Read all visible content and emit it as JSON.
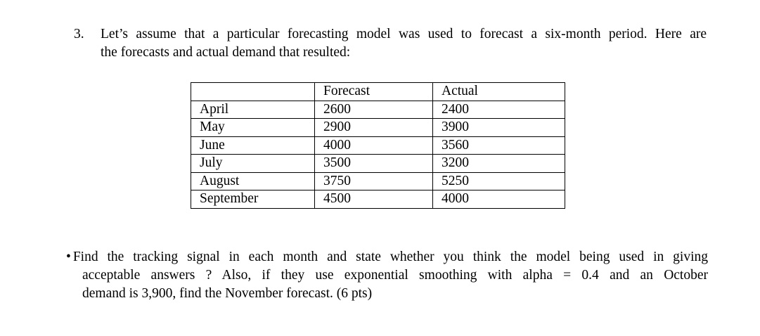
{
  "page": {
    "background_color": "#ffffff",
    "text_color": "#000000"
  },
  "question": {
    "number": "3.",
    "lines": [
      "Let’s assume that a particular forecasting model was used to forecast a six-month period. Here are",
      "the forecasts and actual demand that resulted:"
    ]
  },
  "table": {
    "headers": {
      "month": "",
      "forecast": "Forecast",
      "actual": "Actual"
    },
    "rows": [
      {
        "month": "April",
        "forecast": "2600",
        "actual": "2400"
      },
      {
        "month": "May",
        "forecast": "2900",
        "actual": "3900"
      },
      {
        "month": "June",
        "forecast": "4000",
        "actual": "3560"
      },
      {
        "month": "July",
        "forecast": "3500",
        "actual": "3200"
      },
      {
        "month": "August",
        "forecast": "3750",
        "actual": "5250"
      },
      {
        "month": "September",
        "forecast": "4500",
        "actual": "4000"
      }
    ]
  },
  "bullet_item": {
    "marker": "•",
    "lines": [
      "Find the tracking signal in each month and state whether you think the model being used in giving",
      "acceptable answers ? Also, if they use exponential smoothing with alpha = 0.4 and an October",
      "demand is 3,900, find the November forecast. (6 pts)"
    ]
  }
}
